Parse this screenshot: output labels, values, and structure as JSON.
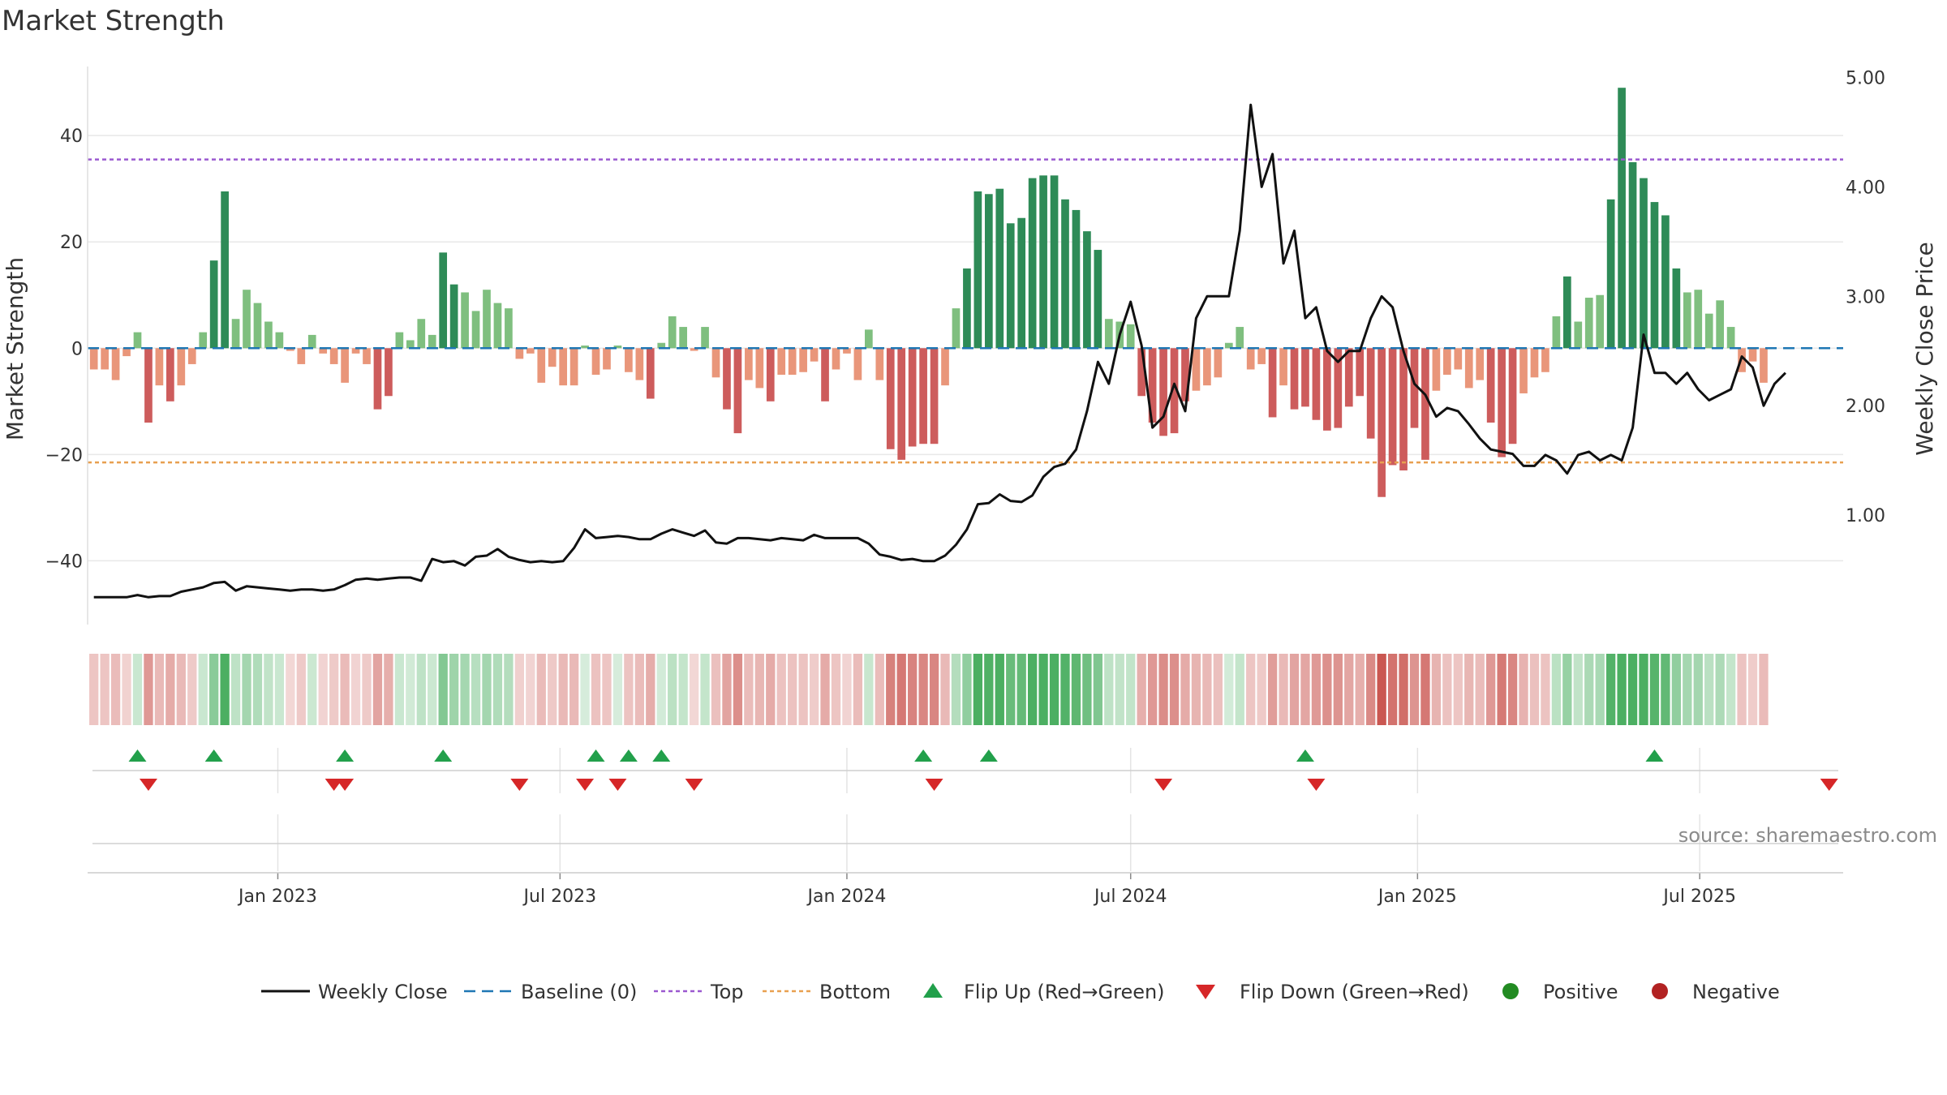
{
  "chart_data": {
    "type": "bar",
    "title": "Market Strength",
    "source": "source: sharemaestro.com",
    "y_left": {
      "label": "Market Strength",
      "ticks": [
        40,
        20,
        0,
        -20,
        -40
      ],
      "tick_labels": [
        "40",
        "20",
        "0",
        "−20",
        "−40"
      ],
      "range": [
        -52,
        53
      ]
    },
    "y_right": {
      "label": "Weekly Close Price",
      "ticks": [
        1.0,
        2.0,
        3.0,
        4.0,
        5.0
      ],
      "tick_labels": [
        "1.00",
        "2.00",
        "3.00",
        "4.00",
        "5.00"
      ],
      "range": [
        0.0,
        5.1
      ]
    },
    "x_axis": {
      "start_date": "2022-09-01",
      "end_date": "2025-10-01",
      "tick_dates": [
        "2023-01-01",
        "2023-07-01",
        "2024-01-01",
        "2024-07-01",
        "2025-01-01",
        "2025-07-01"
      ],
      "tick_labels": [
        "Jan 2023",
        "Jul 2023",
        "Jan 2024",
        "Jul 2024",
        "Jan 2025",
        "Jul 2025"
      ]
    },
    "reference_lines": {
      "top": 35.5,
      "bottom": -21.5,
      "baseline": 0
    },
    "dates": [
      "2022-09-05",
      "2022-09-12",
      "2022-09-19",
      "2022-09-26",
      "2022-10-03",
      "2022-10-10",
      "2022-10-17",
      "2022-10-24",
      "2022-10-31",
      "2022-11-07",
      "2022-11-14",
      "2022-11-21",
      "2022-11-28",
      "2022-12-05",
      "2022-12-12",
      "2022-12-19",
      "2022-12-26",
      "2023-01-02",
      "2023-01-09",
      "2023-01-16",
      "2023-01-23",
      "2023-01-30",
      "2023-02-06",
      "2023-02-13",
      "2023-02-20",
      "2023-02-27",
      "2023-03-06",
      "2023-03-13",
      "2023-03-20",
      "2023-03-27",
      "2023-04-03",
      "2023-04-10",
      "2023-04-17",
      "2023-04-24",
      "2023-05-01",
      "2023-05-08",
      "2023-05-15",
      "2023-05-22",
      "2023-05-29",
      "2023-06-05",
      "2023-06-12",
      "2023-06-19",
      "2023-06-26",
      "2023-07-03",
      "2023-07-10",
      "2023-07-17",
      "2023-07-24",
      "2023-07-31",
      "2023-08-07",
      "2023-08-14",
      "2023-08-21",
      "2023-08-28",
      "2023-09-04",
      "2023-09-11",
      "2023-09-18",
      "2023-09-25",
      "2023-10-02",
      "2023-10-09",
      "2023-10-16",
      "2023-10-23",
      "2023-10-30",
      "2023-11-06",
      "2023-11-13",
      "2023-11-20",
      "2023-11-27",
      "2023-12-04",
      "2023-12-11",
      "2023-12-18",
      "2023-12-25",
      "2024-01-01",
      "2024-01-08",
      "2024-01-15",
      "2024-01-22",
      "2024-01-29",
      "2024-02-05",
      "2024-02-12",
      "2024-02-19",
      "2024-02-26",
      "2024-03-04",
      "2024-03-11",
      "2024-03-18",
      "2024-03-25",
      "2024-04-01",
      "2024-04-08",
      "2024-04-15",
      "2024-04-22",
      "2024-04-29",
      "2024-05-06",
      "2024-05-13",
      "2024-05-20",
      "2024-05-27",
      "2024-06-03",
      "2024-06-10",
      "2024-06-17",
      "2024-06-24",
      "2024-07-01",
      "2024-07-08",
      "2024-07-15",
      "2024-07-22",
      "2024-07-29",
      "2024-08-05",
      "2024-08-12",
      "2024-08-19",
      "2024-08-26",
      "2024-09-02",
      "2024-09-09",
      "2024-09-16",
      "2024-09-23",
      "2024-09-30",
      "2024-10-07",
      "2024-10-14",
      "2024-10-21",
      "2024-10-28",
      "2024-11-04",
      "2024-11-11",
      "2024-11-18",
      "2024-11-25",
      "2024-12-02",
      "2024-12-09",
      "2024-12-16",
      "2024-12-23",
      "2024-12-30",
      "2025-01-06",
      "2025-01-13",
      "2025-01-20",
      "2025-01-27",
      "2025-02-03",
      "2025-02-10",
      "2025-02-17",
      "2025-02-24",
      "2025-03-03",
      "2025-03-10",
      "2025-03-17",
      "2025-03-24",
      "2025-03-31",
      "2025-04-07",
      "2025-04-14",
      "2025-04-21",
      "2025-04-28",
      "2025-05-05",
      "2025-05-12",
      "2025-05-19",
      "2025-05-26",
      "2025-06-02",
      "2025-06-09",
      "2025-06-16",
      "2025-06-23",
      "2025-06-30",
      "2025-07-07",
      "2025-07-14",
      "2025-07-21",
      "2025-07-28",
      "2025-08-04",
      "2025-08-11",
      "2025-08-18",
      "2025-08-25",
      "2025-09-01",
      "2025-09-08",
      "2025-09-15",
      "2025-09-22"
    ],
    "market_strength": [
      -4,
      -4,
      -6,
      -1.5,
      3,
      -14,
      -7,
      -10,
      -7,
      -3,
      3,
      16.5,
      29.5,
      5.5,
      11,
      8.5,
      5,
      3,
      -0.5,
      -3,
      2.5,
      -1,
      -3,
      -6.5,
      -1,
      -3,
      -11.5,
      -9,
      3,
      1.5,
      5.5,
      2.5,
      18,
      12,
      10.5,
      7,
      11,
      8.5,
      7.5,
      -2,
      -1,
      -6.5,
      -3.5,
      -7,
      -7,
      0.5,
      -5,
      -4,
      0.5,
      -4.5,
      -6,
      -9.5,
      1,
      6,
      4,
      -0.5,
      4,
      -5.5,
      -11.5,
      -16,
      -6,
      -7.5,
      -10,
      -5,
      -5,
      -4.5,
      -2.5,
      -10,
      -4,
      -1,
      -6,
      3.5,
      -6,
      -19,
      -21,
      -18.5,
      -18,
      -18,
      -7,
      7.5,
      15,
      29.5,
      29,
      30,
      23.5,
      24.5,
      32,
      32.5,
      32.5,
      28,
      26,
      22,
      18.5,
      5.5,
      5,
      4.5,
      -9,
      -14,
      -16.5,
      -16,
      -10,
      -8,
      -7,
      -5.5,
      1,
      4,
      -4,
      -3,
      -13,
      -7,
      -11.5,
      -11,
      -13.5,
      -15.5,
      -15,
      -11,
      -9,
      -17,
      -28,
      -22,
      -23,
      -15,
      -21,
      -8,
      -5,
      -4,
      -7.5,
      -6,
      -14,
      -20.5,
      -18,
      -8.5,
      -5.5,
      -4.5,
      6,
      13.5,
      5,
      9.5,
      10,
      28,
      49,
      35,
      32,
      27.5,
      25,
      15,
      10.5,
      11,
      6.5,
      9,
      4,
      -4.5,
      -2.5,
      -6.5
    ],
    "weekly_close": [
      0.25,
      0.25,
      0.25,
      0.25,
      0.27,
      0.25,
      0.26,
      0.26,
      0.3,
      0.32,
      0.34,
      0.38,
      0.39,
      0.31,
      0.35,
      0.34,
      0.33,
      0.32,
      0.31,
      0.32,
      0.32,
      0.31,
      0.32,
      0.36,
      0.41,
      0.42,
      0.41,
      0.42,
      0.43,
      0.43,
      0.4,
      0.6,
      0.57,
      0.58,
      0.54,
      0.62,
      0.63,
      0.69,
      0.62,
      0.59,
      0.57,
      0.58,
      0.57,
      0.58,
      0.7,
      0.87,
      0.79,
      0.8,
      0.81,
      0.8,
      0.78,
      0.78,
      0.83,
      0.87,
      0.84,
      0.81,
      0.86,
      0.75,
      0.74,
      0.79,
      0.79,
      0.78,
      0.77,
      0.79,
      0.78,
      0.77,
      0.82,
      0.79,
      0.79,
      0.79,
      0.79,
      0.74,
      0.64,
      0.62,
      0.59,
      0.6,
      0.58,
      0.58,
      0.63,
      0.73,
      0.87,
      1.1,
      1.11,
      1.19,
      1.13,
      1.12,
      1.18,
      1.35,
      1.44,
      1.47,
      1.6,
      1.95,
      2.4,
      2.2,
      2.65,
      2.95,
      2.55,
      1.8,
      1.9,
      2.2,
      1.95,
      2.8,
      3.0,
      3.0,
      3.0,
      3.6,
      4.75,
      4.0,
      4.3,
      3.3,
      3.6,
      2.8,
      2.9,
      2.5,
      2.4,
      2.5,
      2.5,
      2.8,
      3.0,
      2.9,
      2.5,
      2.2,
      2.1,
      1.9,
      1.98,
      1.95,
      1.83,
      1.7,
      1.6,
      1.58,
      1.56,
      1.45,
      1.45,
      1.55,
      1.5,
      1.38,
      1.55,
      1.58,
      1.5,
      1.55,
      1.5,
      1.8,
      2.65,
      2.3,
      2.3,
      2.2,
      2.3,
      2.15,
      2.05,
      2.1,
      2.15,
      2.45,
      2.35,
      2.0,
      2.2,
      2.3
    ],
    "flip_up_dates": [
      "2022-10-03",
      "2022-11-21",
      "2023-02-13",
      "2023-04-17",
      "2023-07-24",
      "2023-08-14",
      "2023-09-04",
      "2024-02-19",
      "2024-04-01",
      "2024-10-21",
      "2025-06-02"
    ],
    "flip_down_dates": [
      "2022-10-10",
      "2023-02-06",
      "2023-02-13",
      "2023-06-05",
      "2023-07-17",
      "2023-08-07",
      "2023-09-25",
      "2024-02-26",
      "2024-07-22",
      "2024-10-28",
      "2025-09-22"
    ],
    "colors": {
      "pos_strong": "#2e8b57",
      "pos_weak": "#7fbf7f",
      "neg_strong": "#cd5c5c",
      "neg_weak": "#e9967a",
      "close_line": "#111111",
      "baseline": "#1f77b4",
      "top_line": "#9b59d0",
      "bottom_line": "#e8a050",
      "flip_up": "#22a04b",
      "flip_down": "#d62728",
      "positive": "#228b22",
      "negative": "#b22222",
      "grid": "#e8e8e8"
    },
    "legend": [
      {
        "label": "Weekly Close",
        "key": "close"
      },
      {
        "label": "Baseline (0)",
        "key": "baseline"
      },
      {
        "label": "Top",
        "key": "top"
      },
      {
        "label": "Bottom",
        "key": "bottom"
      },
      {
        "label": "Flip Up (Red→Green)",
        "key": "flip_up"
      },
      {
        "label": "Flip Down (Green→Red)",
        "key": "flip_down"
      },
      {
        "label": "Positive",
        "key": "positive"
      },
      {
        "label": "Negative",
        "key": "negative"
      }
    ]
  }
}
